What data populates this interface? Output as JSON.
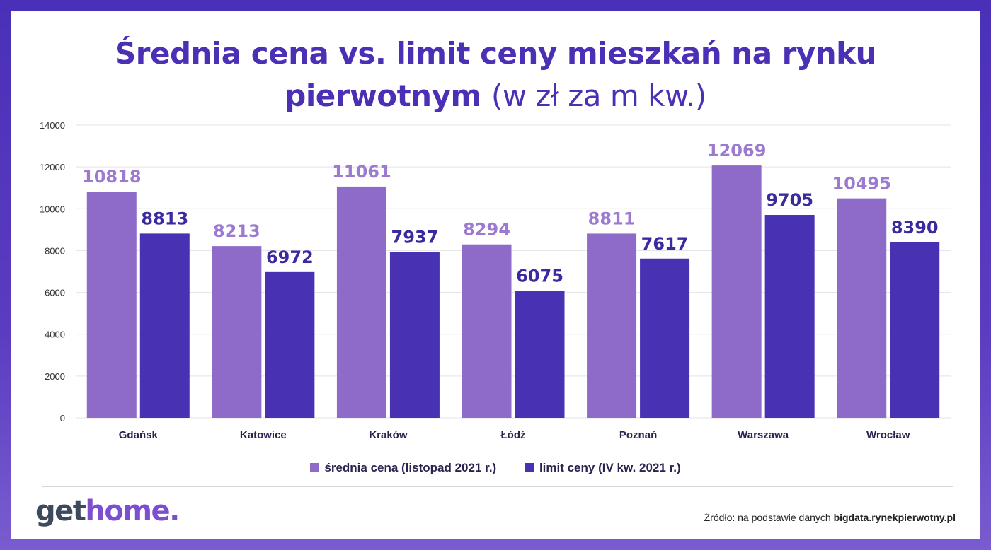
{
  "header": {
    "title_bold_line1": "Średnia cena vs. limit ceny mieszkań na rynku",
    "title_bold_line2": "pierwotnym",
    "title_light": "(w zł za m kw.)"
  },
  "colors": {
    "series_avg": "#8e6bc8",
    "series_limit": "#4832b3",
    "label_avg": "#9b7ad0",
    "label_limit": "#3a2aa0",
    "grid": "#e3e3e6",
    "axis_text": "#333333",
    "category_text": "#2a2350"
  },
  "chart_data": {
    "type": "bar",
    "title": "Średnia cena vs. limit ceny mieszkań na rynku pierwotnym (w zł za m kw.)",
    "xlabel": "",
    "ylabel": "",
    "ylim": [
      0,
      14000
    ],
    "yticks": [
      0,
      2000,
      4000,
      6000,
      8000,
      10000,
      12000,
      14000
    ],
    "grid": true,
    "legend_position": "bottom-center",
    "categories": [
      "Gdańsk",
      "Katowice",
      "Kraków",
      "Łódź",
      "Poznań",
      "Warszawa",
      "Wrocław"
    ],
    "series": [
      {
        "name": "średnia cena (listopad 2021 r.)",
        "values": [
          10818,
          8213,
          11061,
          8294,
          8811,
          12069,
          10495
        ]
      },
      {
        "name": "limit ceny (IV kw. 2021 r.)",
        "values": [
          8813,
          6972,
          7937,
          6075,
          7617,
          9705,
          8390
        ]
      }
    ]
  },
  "footer": {
    "logo_part1": "get",
    "logo_part2": "home.",
    "source_prefix": "Źródło: na podstawie danych",
    "source_site": "bigdata.rynekpierwotny.pl"
  }
}
